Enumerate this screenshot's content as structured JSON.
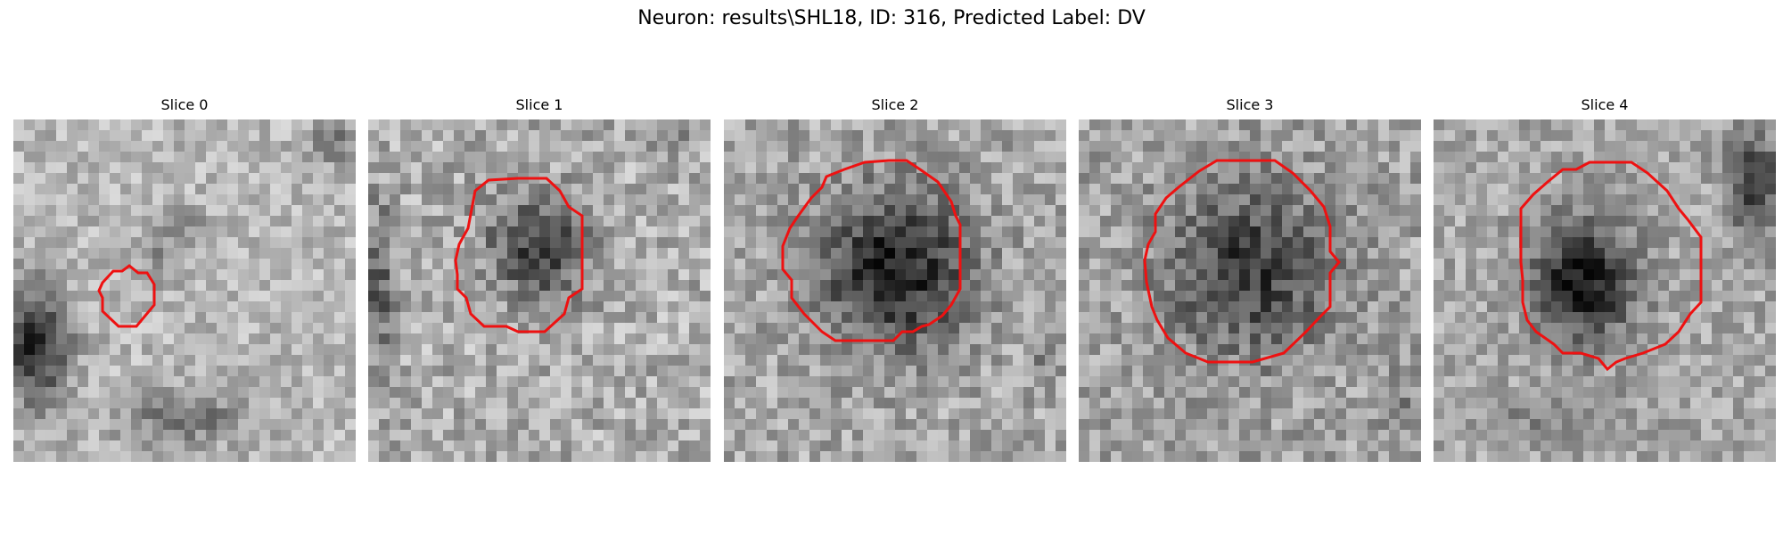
{
  "figure": {
    "title": "Neuron: results\\SHL18, ID: 316, Predicted Label: DV"
  },
  "panels": [
    {
      "title": "Slice 0"
    },
    {
      "title": "Slice 1"
    },
    {
      "title": "Slice 2"
    },
    {
      "title": "Slice 3"
    },
    {
      "title": "Slice 4"
    }
  ],
  "colors": {
    "contour": "#ee1111",
    "background": "#ffffff"
  }
}
